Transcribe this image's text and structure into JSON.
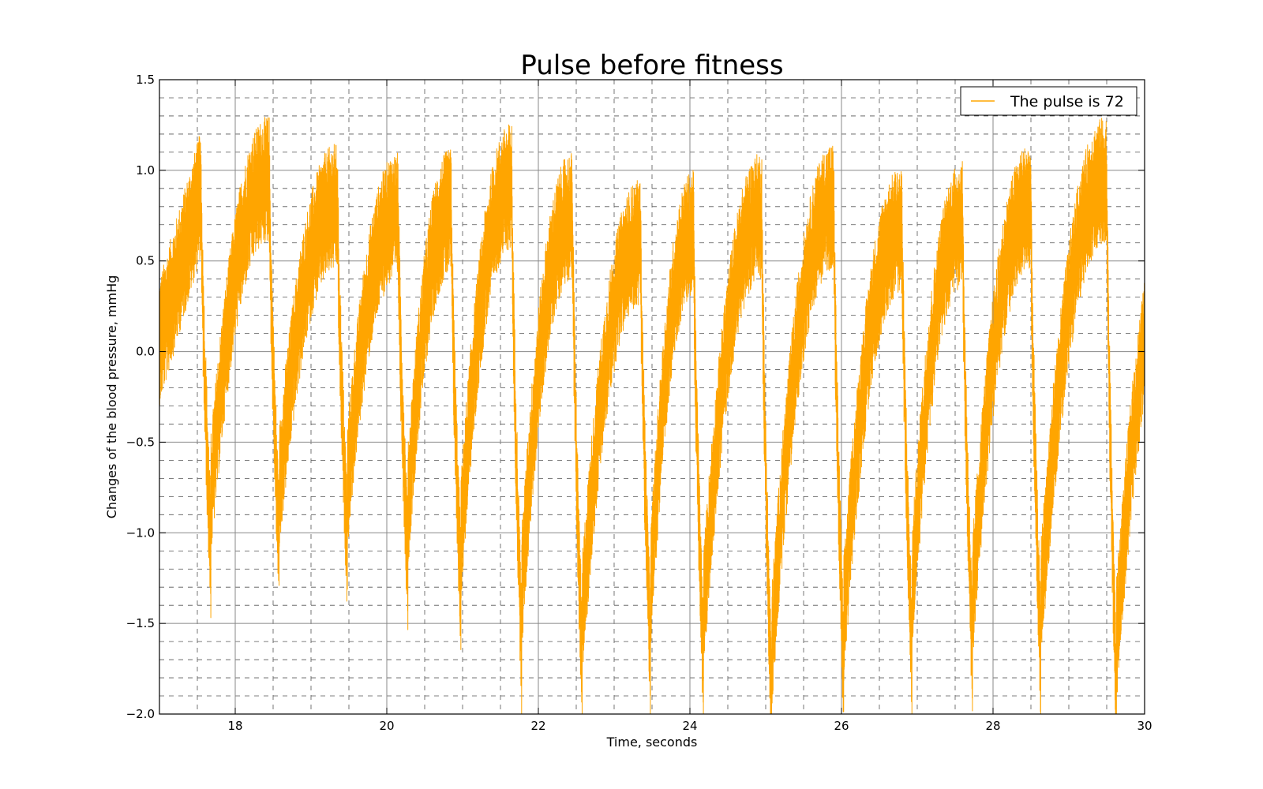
{
  "chart_data": {
    "type": "line",
    "title": "Pulse before fitness",
    "xlabel": "Time, seconds",
    "ylabel": "Changes of the blood pressure, mmHg",
    "xlim": [
      17,
      30
    ],
    "ylim": [
      -2.0,
      1.5
    ],
    "x_ticks": [
      18,
      20,
      22,
      24,
      26,
      28,
      30
    ],
    "x_tick_labels": [
      "18",
      "20",
      "22",
      "24",
      "26",
      "28",
      "30"
    ],
    "y_ticks": [
      -2.0,
      -1.5,
      -1.0,
      -0.5,
      0.0,
      0.5,
      1.0,
      1.5
    ],
    "y_tick_labels": [
      "−2.0",
      "−1.5",
      "−1.0",
      "−0.5",
      "0.0",
      "0.5",
      "1.0",
      "1.5"
    ],
    "x_minor_step": 0.5,
    "y_minor_step": 0.1,
    "grid": true,
    "legend_position": "top-right",
    "series": [
      {
        "name": "The pulse is 72",
        "color": "#FFA500",
        "beat_times": [
          17.55,
          18.45,
          19.35,
          20.15,
          20.85,
          21.65,
          22.45,
          23.35,
          24.05,
          24.95,
          25.9,
          26.8,
          27.6,
          28.5,
          29.5
        ],
        "beat_peaks": [
          1.18,
          1.3,
          1.15,
          1.1,
          1.12,
          1.26,
          1.1,
          0.95,
          1.0,
          1.1,
          1.15,
          1.02,
          1.05,
          1.15,
          1.3
        ],
        "beat_troughs": [
          -1.15,
          -1.12,
          -1.1,
          -1.22,
          -1.38,
          -1.68,
          -1.82,
          -1.7,
          -1.8,
          -2.0,
          -1.83,
          -1.7,
          -1.72,
          -1.75,
          -1.95
        ],
        "noise_amplitude": 0.35
      }
    ]
  }
}
